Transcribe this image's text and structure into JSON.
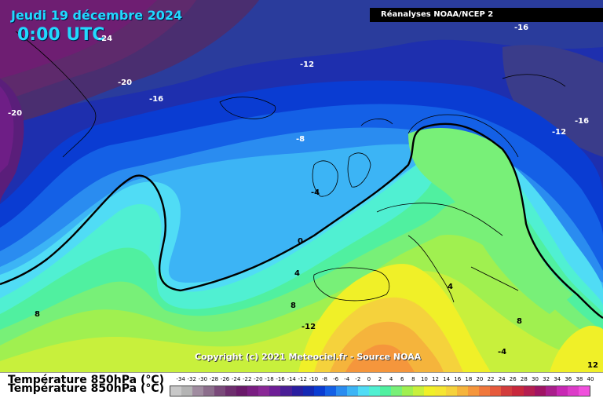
{
  "header": {
    "date_title": "Jeudi 19 décembre 2024",
    "time_title": "0:00 UTC",
    "source": "Réanalyses NOAA/NCEP 2"
  },
  "footer": {
    "copyright": "Copyright (c) 2021 Meteociel.fr - Source NOAA"
  },
  "contour_labels": [
    "-24",
    "-20",
    "-16",
    "-20",
    "-12",
    "-16",
    "-16",
    "-12",
    "-8",
    "-4",
    "0",
    "4",
    "8",
    "8",
    "-12",
    "4",
    "8",
    "-4",
    "12"
  ],
  "legend": {
    "title": "Température 850hPa (°C)",
    "ticks": [
      "-34",
      "-32",
      "-30",
      "-28",
      "-26",
      "-24",
      "-22",
      "-20",
      "-18",
      "-16",
      "-14",
      "-12",
      "-10",
      "-8",
      "-6",
      "-4",
      "-2",
      "0",
      "2",
      "4",
      "6",
      "8",
      "10",
      "12",
      "14",
      "16",
      "18",
      "20",
      "22",
      "24",
      "26",
      "28",
      "30",
      "32",
      "34",
      "36",
      "38",
      "40"
    ],
    "colors": [
      "#c8c8c8",
      "#b4b4b4",
      "#a08ca0",
      "#8c6e8c",
      "#7a4a7a",
      "#6e2e6e",
      "#6a1a6a",
      "#7a1e82",
      "#8a2896",
      "#6e1e96",
      "#4a1e96",
      "#2a1ea0",
      "#1428b4",
      "#0a3cd2",
      "#1460e6",
      "#2a8cf0",
      "#3cb4f5",
      "#50dcf5",
      "#50f0d2",
      "#50f0a0",
      "#78f078",
      "#a0f050",
      "#c8f03c",
      "#f0f028",
      "#f5e632",
      "#f5d23c",
      "#f5b43c",
      "#f5963c",
      "#f0783c",
      "#e65a3c",
      "#d23c3c",
      "#c8283c",
      "#b41e50",
      "#a01464",
      "#aa1e8c",
      "#c828b4",
      "#dc3cc8",
      "#f050dc"
    ]
  }
}
